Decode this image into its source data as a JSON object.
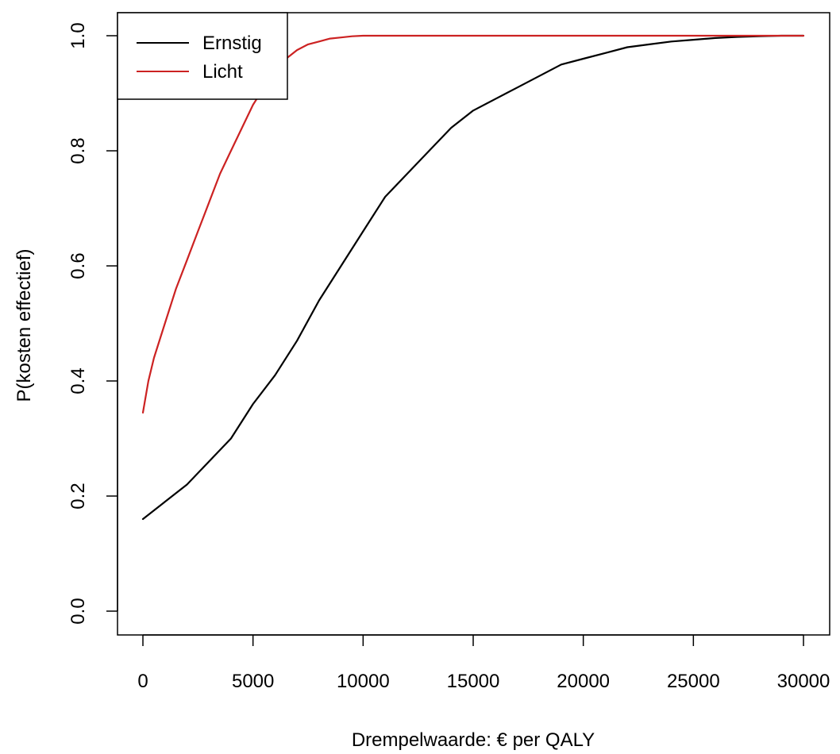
{
  "chart_data": {
    "type": "line",
    "title": "",
    "xlabel": "Drempelwaarde: € per QALY",
    "ylabel": "P(kosten effectief)",
    "xlim": [
      0,
      30000
    ],
    "ylim": [
      0.0,
      1.0
    ],
    "xticks": [
      0,
      5000,
      10000,
      15000,
      20000,
      25000,
      30000
    ],
    "xtick_labels": [
      "0",
      "5000",
      "10000",
      "15000",
      "20000",
      "25000",
      "30000"
    ],
    "yticks": [
      0.0,
      0.2,
      0.4,
      0.6,
      0.8,
      1.0
    ],
    "ytick_labels": [
      "0.0",
      "0.2",
      "0.4",
      "0.6",
      "0.8",
      "1.0"
    ],
    "grid": false,
    "legend_position": "top-left",
    "series": [
      {
        "name": "Ernstig",
        "color": "#000000",
        "x": [
          0,
          1000,
          2000,
          3000,
          4000,
          5000,
          6000,
          7000,
          8000,
          9000,
          10000,
          11000,
          12000,
          13000,
          14000,
          15000,
          16000,
          17000,
          18000,
          19000,
          20000,
          21000,
          22000,
          23000,
          24000,
          25000,
          26000,
          27000,
          28000,
          29000,
          30000
        ],
        "y": [
          0.16,
          0.19,
          0.22,
          0.26,
          0.3,
          0.36,
          0.41,
          0.47,
          0.54,
          0.6,
          0.66,
          0.72,
          0.76,
          0.8,
          0.84,
          0.87,
          0.89,
          0.91,
          0.93,
          0.95,
          0.96,
          0.97,
          0.98,
          0.985,
          0.99,
          0.993,
          0.996,
          0.998,
          0.999,
          1.0,
          1.0
        ]
      },
      {
        "name": "Licht",
        "color": "#cc2222",
        "x": [
          0,
          250,
          500,
          1000,
          1500,
          2000,
          2500,
          3000,
          3500,
          4000,
          4500,
          5000,
          5500,
          6000,
          6500,
          7000,
          7500,
          8000,
          8500,
          9000,
          9500,
          10000,
          11000,
          12000,
          15000,
          20000,
          25000,
          30000
        ],
        "y": [
          0.345,
          0.4,
          0.44,
          0.5,
          0.56,
          0.61,
          0.66,
          0.71,
          0.76,
          0.8,
          0.84,
          0.88,
          0.91,
          0.94,
          0.96,
          0.975,
          0.985,
          0.99,
          0.995,
          0.997,
          0.999,
          1.0,
          1.0,
          1.0,
          1.0,
          1.0,
          1.0,
          1.0
        ]
      }
    ]
  }
}
